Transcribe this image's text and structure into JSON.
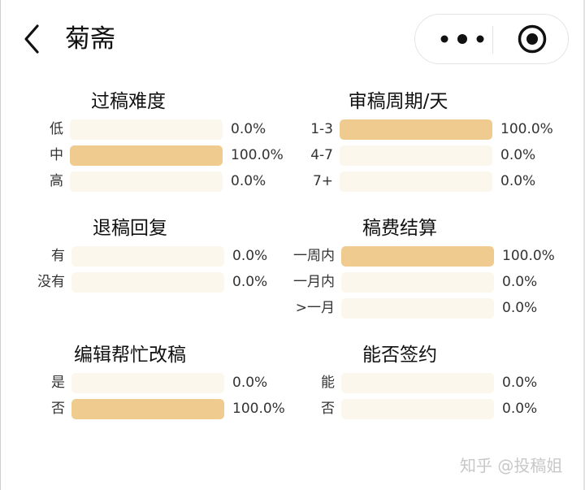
{
  "header": {
    "title": "菊斋",
    "back_icon": "chevron-left-icon",
    "more_icon": "more-dots-icon",
    "target_icon": "target-icon"
  },
  "colors": {
    "bar_fill": "#efcb8f",
    "bar_track": "#fcf7ec"
  },
  "stats": [
    {
      "title": "过稿难度",
      "rows": [
        {
          "label": "低",
          "percent": 0.0,
          "text": "0.0%"
        },
        {
          "label": "中",
          "percent": 100.0,
          "text": "100.0%"
        },
        {
          "label": "高",
          "percent": 0.0,
          "text": "0.0%"
        }
      ]
    },
    {
      "title": "审稿周期/天",
      "rows": [
        {
          "label": "1-3",
          "percent": 100.0,
          "text": "100.0%"
        },
        {
          "label": "4-7",
          "percent": 0.0,
          "text": "0.0%"
        },
        {
          "label": "7+",
          "percent": 0.0,
          "text": "0.0%"
        }
      ]
    },
    {
      "title": "退稿回复",
      "rows": [
        {
          "label": "有",
          "percent": 0.0,
          "text": "0.0%"
        },
        {
          "label": "没有",
          "percent": 0.0,
          "text": "0.0%"
        }
      ]
    },
    {
      "title": "稿费结算",
      "rows": [
        {
          "label": "一周内",
          "percent": 100.0,
          "text": "100.0%"
        },
        {
          "label": "一月内",
          "percent": 0.0,
          "text": "0.0%"
        },
        {
          "label": ">一月",
          "percent": 0.0,
          "text": "0.0%"
        }
      ]
    },
    {
      "title": "编辑帮忙改稿",
      "rows": [
        {
          "label": "是",
          "percent": 0.0,
          "text": "0.0%"
        },
        {
          "label": "否",
          "percent": 100.0,
          "text": "100.0%"
        }
      ]
    },
    {
      "title": "能否签约",
      "rows": [
        {
          "label": "能",
          "percent": 0.0,
          "text": "0.0%"
        },
        {
          "label": "否",
          "percent": 0.0,
          "text": "0.0%"
        }
      ]
    }
  ],
  "watermark": "知乎 @投稿姐"
}
